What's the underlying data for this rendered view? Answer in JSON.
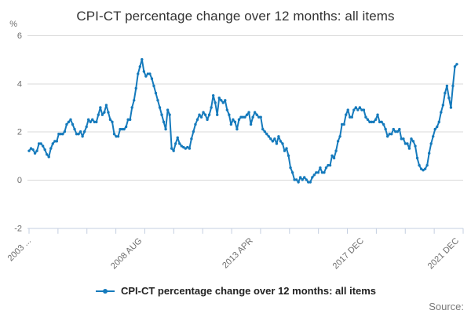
{
  "title": "CPI-CT percentage change over 12 months: all items",
  "legend": {
    "label": "CPI-CT percentage change over 12 months: all items"
  },
  "source_label": "Source:",
  "colors": {
    "line": "#157abc",
    "grid": "#d9d9d9",
    "axis": "#c4cfe0",
    "tick_label": "#6e6e6e",
    "title_text": "#333333",
    "legend_text": "#222222",
    "source_text": "#7a7a7a"
  },
  "chart_data": {
    "type": "line",
    "title": "CPI-CT percentage change over 12 months: all items",
    "ylabel": "%",
    "ylim": [
      -2,
      6
    ],
    "yticks": [
      -2,
      0,
      2,
      4,
      6
    ],
    "grid": "horizontal",
    "legend_position": "bottom",
    "x_axis_minor_tick_count": 16,
    "x_tick_labels": [
      {
        "label": "2003 ...",
        "month_index": 0
      },
      {
        "label": "2008 AUG",
        "month_index": 56
      },
      {
        "label": "2013 APR",
        "month_index": 112
      },
      {
        "label": "2017 DEC",
        "month_index": 168
      },
      {
        "label": "2021 DEC",
        "month_index": 216
      }
    ],
    "series": [
      {
        "name": "CPI-CT percentage change over 12 months: all items",
        "color": "#157abc",
        "frequency": "monthly",
        "start": "2003 DEC",
        "end": "2021 DEC",
        "values": [
          1.2,
          1.3,
          1.25,
          1.1,
          1.2,
          1.5,
          1.5,
          1.4,
          1.25,
          1.05,
          0.95,
          1.3,
          1.5,
          1.6,
          1.6,
          1.9,
          1.9,
          1.9,
          2.0,
          2.3,
          2.4,
          2.5,
          2.3,
          2.1,
          1.9,
          1.9,
          2.0,
          1.8,
          2.0,
          2.2,
          2.5,
          2.4,
          2.5,
          2.4,
          2.4,
          2.7,
          3.0,
          2.7,
          2.8,
          3.1,
          2.8,
          2.5,
          2.4,
          1.9,
          1.8,
          1.8,
          2.1,
          2.1,
          2.1,
          2.2,
          2.5,
          2.5,
          3.0,
          3.3,
          3.8,
          4.4,
          4.7,
          5.0,
          4.5,
          4.3,
          4.4,
          4.4,
          4.2,
          3.9,
          3.6,
          3.3,
          3.0,
          2.7,
          2.4,
          2.1,
          2.9,
          2.7,
          1.3,
          1.2,
          1.5,
          1.75,
          1.5,
          1.4,
          1.35,
          1.3,
          1.35,
          1.3,
          1.7,
          2.0,
          2.3,
          2.5,
          2.7,
          2.6,
          2.8,
          2.7,
          2.5,
          2.7,
          3.0,
          3.5,
          3.2,
          2.7,
          3.4,
          3.3,
          3.2,
          3.3,
          2.9,
          2.7,
          2.3,
          2.5,
          2.4,
          2.1,
          2.5,
          2.6,
          2.6,
          2.6,
          2.7,
          2.8,
          2.3,
          2.6,
          2.8,
          2.7,
          2.6,
          2.6,
          2.1,
          2.0,
          1.9,
          1.8,
          1.7,
          1.6,
          1.7,
          1.5,
          1.8,
          1.6,
          1.5,
          1.2,
          1.3,
          1.0,
          0.5,
          0.3,
          0.0,
          0.0,
          -0.1,
          0.1,
          0.0,
          0.1,
          0.0,
          -0.1,
          -0.1,
          0.1,
          0.2,
          0.3,
          0.3,
          0.5,
          0.3,
          0.3,
          0.5,
          0.6,
          0.6,
          1.0,
          0.9,
          1.2,
          1.6,
          1.8,
          2.3,
          2.3,
          2.7,
          2.9,
          2.6,
          2.6,
          2.9,
          3.0,
          2.9,
          3.0,
          2.9,
          2.9,
          2.6,
          2.5,
          2.4,
          2.4,
          2.4,
          2.5,
          2.7,
          2.4,
          2.4,
          2.3,
          2.1,
          1.8,
          1.9,
          1.9,
          2.1,
          2.0,
          2.0,
          2.1,
          1.7,
          1.7,
          1.5,
          1.5,
          1.3,
          1.7,
          1.6,
          1.4,
          0.9,
          0.6,
          0.45,
          0.4,
          0.45,
          0.6,
          1.1,
          1.5,
          1.8,
          2.1,
          2.2,
          2.4,
          2.8,
          3.1,
          3.6,
          3.9,
          3.4,
          3.0,
          3.9,
          4.7,
          4.8
        ]
      }
    ]
  }
}
